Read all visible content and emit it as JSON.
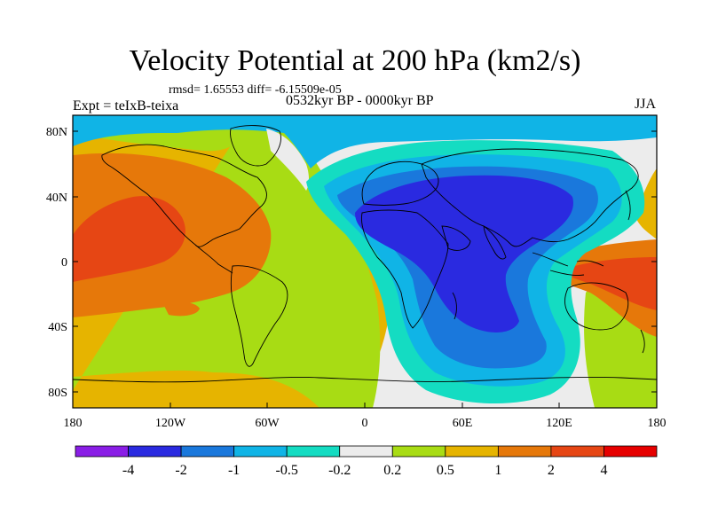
{
  "title": "Velocity Potential at 200 hPa (km2/s)",
  "stats_text": "rmsd= 1.65553  diff= -6.15509e-05",
  "experiment_text": "Expt = teIxB-teixa",
  "period_text": "0532kyr BP - 0000kyr BP",
  "season_text": "JJA",
  "map": {
    "projection": "cylindrical-equidistant",
    "lon_range": [
      -180,
      180
    ],
    "lat_range": [
      -90,
      90
    ],
    "x_tick_labels": [
      "180",
      "120W",
      "60W",
      "0",
      "60E",
      "120E",
      "180"
    ],
    "y_tick_labels": [
      "80N",
      "40N",
      "0",
      "40S",
      "80S"
    ],
    "y_tick_values": [
      80,
      40,
      0,
      -40,
      -80
    ]
  },
  "colorbar": {
    "labels": [
      "-4",
      "-2",
      "-1",
      "-0.5",
      "-0.2",
      "0.2",
      "0.5",
      "1",
      "2",
      "4"
    ],
    "colors": [
      "#8a1ee6",
      "#2a2ae0",
      "#1a78dc",
      "#10b4e6",
      "#14dcc2",
      "#ececec",
      "#a8dc14",
      "#e6b400",
      "#e6780a",
      "#e64614",
      "#e60000"
    ]
  },
  "fill_colors": {
    "lt_neg4": "#8a1ee6",
    "neg4_neg2": "#2a2ae0",
    "neg2_neg1": "#1a78dc",
    "neg1_neg05": "#10b4e6",
    "neg05_neg02": "#14dcc2",
    "neg02_02": "#ececec",
    "p02_p05": "#a8dc14",
    "p05_p1": "#e6b400",
    "p1_p2": "#e6780a",
    "p2_p4": "#e64614",
    "gt_p4": "#e60000"
  }
}
